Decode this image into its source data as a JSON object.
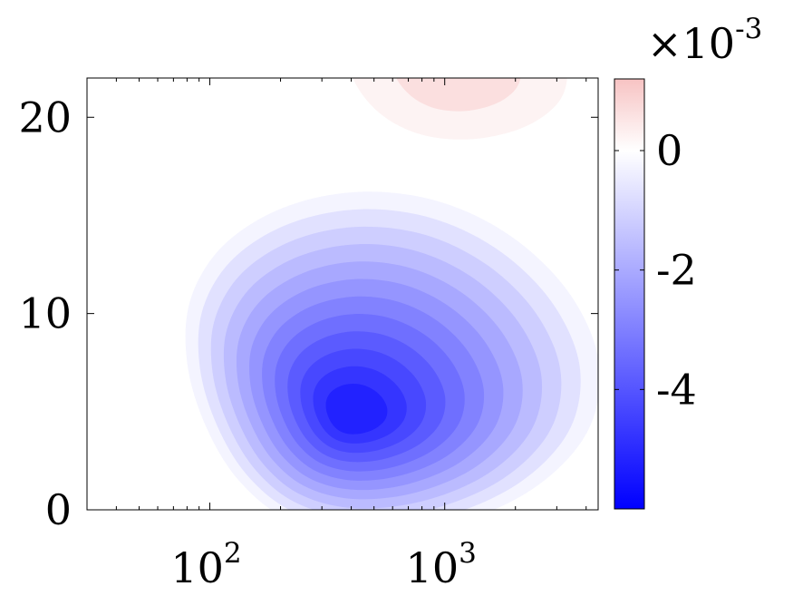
{
  "chart_data": {
    "type": "heatmap",
    "title": "",
    "xlabel": "",
    "ylabel": "",
    "x_scale": "log",
    "xlim": [
      30,
      4500
    ],
    "ylim": [
      0,
      22
    ],
    "x_ticks": [
      {
        "value": 100,
        "base": "10",
        "exp": "2"
      },
      {
        "value": 1000,
        "base": "10",
        "exp": "3"
      }
    ],
    "y_ticks": [
      {
        "value": 0,
        "label": "0"
      },
      {
        "value": 10,
        "label": "10"
      },
      {
        "value": 20,
        "label": "20"
      }
    ],
    "grid": false,
    "colorbar": {
      "multiplier_base": "×10",
      "multiplier_exp": "-3",
      "range": [
        -6,
        1.2
      ],
      "ticks": [
        {
          "value": 0,
          "label": "0"
        },
        {
          "value": -2,
          "label": "-2"
        },
        {
          "value": -4,
          "label": "-4"
        }
      ],
      "colors": {
        "min": "#0000ff",
        "zero": "#ffffff",
        "max": "#f7c3c3"
      }
    },
    "contour_levels": {
      "negative": [
        -0.25,
        -0.7,
        -1.15,
        -1.6,
        -2.05,
        -2.5,
        -2.95,
        -3.4,
        -3.85,
        -4.3,
        -4.75,
        -5.2
      ],
      "positive": [
        0.25,
        0.65
      ]
    },
    "field": {
      "negative_center": {
        "x": 400,
        "y": 5
      },
      "negative_min": -5.5,
      "positive_center": {
        "x": 1100,
        "y": 22.5
      },
      "positive_max": 0.9
    }
  }
}
